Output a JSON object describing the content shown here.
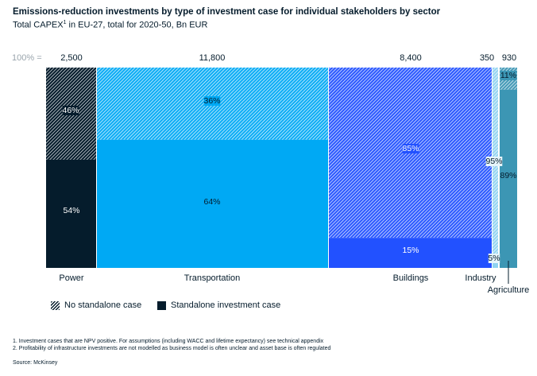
{
  "header": {
    "title": "Emissions-reduction investments by type of investment case for individual stakeholders by sector",
    "subtitle_main": "Total CAPEX",
    "subtitle_sup": "1",
    "subtitle_rest": " in EU-27, total for 2020-50, Bn EUR"
  },
  "chart_data": {
    "type": "marimekko",
    "total_label": "100% =",
    "unit": "Bn EUR",
    "categories": [
      "Power",
      "Transportation",
      "Buildings",
      "Industry",
      "Agriculture"
    ],
    "totals": [
      2500,
      11800,
      8400,
      350,
      930
    ],
    "total_labels": [
      "2,500",
      "11,800",
      "8,400",
      "350",
      "930"
    ],
    "series": [
      {
        "name": "Standalone investment case",
        "values": [
          54,
          64,
          15,
          5,
          89
        ],
        "labels": [
          "54%",
          "64%",
          "15%",
          "5%",
          "89%"
        ]
      },
      {
        "name": "No standalone case",
        "values": [
          46,
          36,
          85,
          95,
          11
        ],
        "labels": [
          "46%",
          "36%",
          "85%",
          "95%",
          "11%"
        ]
      }
    ],
    "colors": {
      "Power": "#051c2c",
      "Transportation": "#00a9f4",
      "Buildings": "#2251ff",
      "Industry": "#8fd3f0",
      "Agriculture": "#3c96b4"
    }
  },
  "legend": {
    "hatched_label": "No standalone case",
    "solid_label": "Standalone investment case"
  },
  "footnotes": {
    "note1": "1. Investment cases that are NPV positive. For assumptions (including WACC and lifetime expectancy) see technical appendix",
    "note2": "2. Profitability of infrastructure investments are not modelled as business model is often unclear and asset base is often regulated",
    "source": "Source: McKinsey"
  }
}
